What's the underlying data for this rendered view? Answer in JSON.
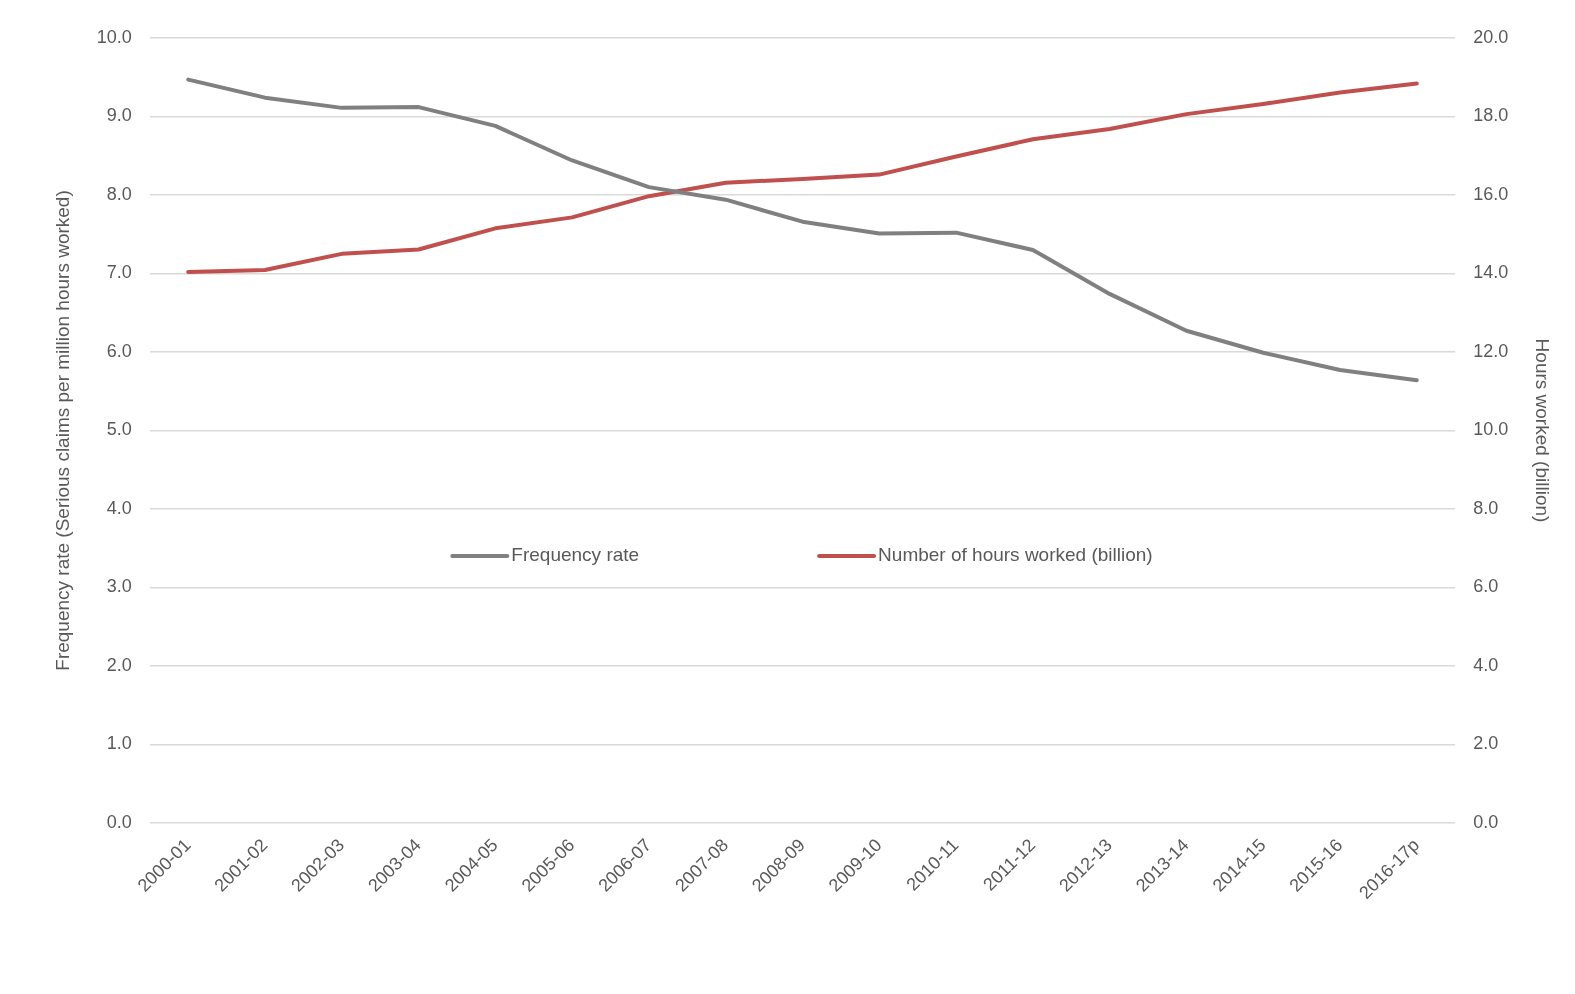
{
  "chart_data": {
    "type": "line",
    "ylabel": "Frequency rate (Serious claims per million hours worked)",
    "y2label": "Hours worked (billion)",
    "categories": [
      "2000-01",
      "2001-02",
      "2002-03",
      "2003-04",
      "2004-05",
      "2005-06",
      "2006-07",
      "2007-08",
      "2008-09",
      "2009-10",
      "2010-11",
      "2011-12",
      "2012-13",
      "2013-14",
      "2014-15",
      "2015-16",
      "2016-17p"
    ],
    "series": [
      {
        "name": "Frequency rate",
        "color": "#808080",
        "values": [
          9.47,
          9.24,
          9.11,
          9.12,
          8.88,
          8.44,
          8.1,
          7.94,
          7.66,
          7.51,
          7.52,
          7.3,
          6.74,
          6.27,
          5.99,
          5.77,
          5.64
        ]
      },
      {
        "name": "Number of hours worked (billion)",
        "color": "#c0504d",
        "axis": "y2",
        "values": [
          14.04,
          14.09,
          14.5,
          14.61,
          15.15,
          15.43,
          15.97,
          16.31,
          16.41,
          16.52,
          16.98,
          17.42,
          17.68,
          18.06,
          18.32,
          18.61,
          18.84
        ]
      }
    ],
    "ylim": [
      0,
      10
    ],
    "yticks": [
      {
        "value": 0,
        "label": "0.0"
      },
      {
        "value": 1,
        "label": "1.0"
      },
      {
        "value": 2,
        "label": "2.0"
      },
      {
        "value": 3,
        "label": "3.0"
      },
      {
        "value": 4,
        "label": "4.0"
      },
      {
        "value": 5,
        "label": "5.0"
      },
      {
        "value": 6,
        "label": "6.0"
      },
      {
        "value": 7,
        "label": "7.0"
      },
      {
        "value": 8,
        "label": "8.0"
      },
      {
        "value": 9,
        "label": "9.0"
      },
      {
        "value": 10,
        "label": "10.0"
      }
    ],
    "y2lim": [
      0,
      20
    ],
    "y2ticks": [
      {
        "value": 0,
        "label": "0.0"
      },
      {
        "value": 2,
        "label": "2.0"
      },
      {
        "value": 4,
        "label": "4.0"
      },
      {
        "value": 6,
        "label": "6.0"
      },
      {
        "value": 8,
        "label": "8.0"
      },
      {
        "value": 10,
        "label": "10.0"
      },
      {
        "value": 12,
        "label": "12.0"
      },
      {
        "value": 14,
        "label": "14.0"
      },
      {
        "value": 16,
        "label": "16.0"
      },
      {
        "value": 18,
        "label": "18.0"
      },
      {
        "value": 20,
        "label": "20.0"
      }
    ],
    "grid": "y",
    "legend": "center",
    "marker": "none",
    "line_style": "solid"
  }
}
